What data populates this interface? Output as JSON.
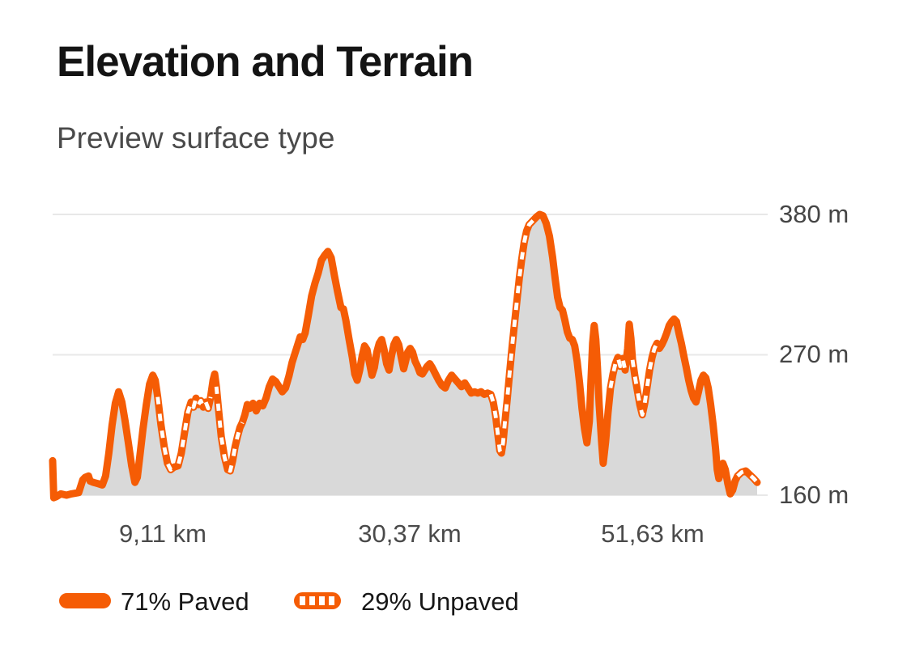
{
  "header": {
    "title": "Elevation and Terrain",
    "subtitle": "Preview surface type"
  },
  "chart_data": {
    "type": "area",
    "title": "Elevation and Terrain",
    "x_unit": "km",
    "y_unit": "m",
    "x_range": [
      0,
      60.9
    ],
    "y_axis": {
      "min": 160,
      "max": 380,
      "ticks": [
        {
          "label": "380 m",
          "value": 380
        },
        {
          "label": "270 m",
          "value": 270
        },
        {
          "label": "160 m",
          "value": 160
        }
      ]
    },
    "x_axis": {
      "ticks": [
        {
          "label": "9,11 km",
          "value": 9.11
        },
        {
          "label": "30,37 km",
          "value": 30.37
        },
        {
          "label": "51,63 km",
          "value": 51.63
        }
      ]
    },
    "legend": [
      {
        "label": "71% Paved",
        "swatch": "solid"
      },
      {
        "label": "29% Unpaved",
        "swatch": "dashed"
      }
    ],
    "colors": {
      "line": "#f55c05",
      "dash": "#ffffff",
      "fill": "#d9d9d9",
      "grid": "#e8e8e8"
    },
    "surface_key": {
      "p": "paved",
      "u": "unpaved"
    },
    "profile": [
      [
        0,
        187,
        "p"
      ],
      [
        0.1,
        158,
        "p"
      ],
      [
        0.35,
        159,
        "p"
      ],
      [
        0.7,
        161,
        "p"
      ],
      [
        1.19,
        160,
        "p"
      ],
      [
        1.61,
        161,
        "p"
      ],
      [
        2.24,
        162,
        "p"
      ],
      [
        2.59,
        172,
        "p"
      ],
      [
        2.8,
        174,
        "p"
      ],
      [
        3.08,
        175,
        "p"
      ],
      [
        3.22,
        171,
        "p"
      ],
      [
        3.5,
        170,
        "p"
      ],
      [
        3.92,
        169,
        "p"
      ],
      [
        4.27,
        168,
        "p"
      ],
      [
        4.55,
        175,
        "p"
      ],
      [
        4.83,
        193,
        "p"
      ],
      [
        5.11,
        215,
        "p"
      ],
      [
        5.39,
        232,
        "p"
      ],
      [
        5.67,
        241,
        "p"
      ],
      [
        5.95,
        233,
        "p"
      ],
      [
        6.23,
        218,
        "p"
      ],
      [
        6.51,
        201,
        "p"
      ],
      [
        6.79,
        183,
        "p"
      ],
      [
        7.07,
        170,
        "p"
      ],
      [
        7.28,
        174,
        "p"
      ],
      [
        7.49,
        190,
        "p"
      ],
      [
        7.77,
        212,
        "p"
      ],
      [
        8.05,
        231,
        "p"
      ],
      [
        8.33,
        247,
        "p"
      ],
      [
        8.61,
        254,
        "p"
      ],
      [
        8.82,
        250,
        "p"
      ],
      [
        9.03,
        237,
        "u"
      ],
      [
        9.31,
        215,
        "u"
      ],
      [
        9.59,
        198,
        "u"
      ],
      [
        9.87,
        185,
        "u"
      ],
      [
        10.15,
        180,
        "u"
      ],
      [
        10.43,
        182,
        "u"
      ],
      [
        10.78,
        183,
        "u"
      ],
      [
        11.06,
        193,
        "u"
      ],
      [
        11.34,
        209,
        "u"
      ],
      [
        11.62,
        225,
        "u"
      ],
      [
        11.9,
        233,
        "u"
      ],
      [
        12.11,
        229,
        "u"
      ],
      [
        12.32,
        236,
        "u"
      ],
      [
        12.53,
        231,
        "u"
      ],
      [
        12.74,
        234,
        "u"
      ],
      [
        12.95,
        229,
        "u"
      ],
      [
        13.16,
        233,
        "u"
      ],
      [
        13.37,
        228,
        "u"
      ],
      [
        13.58,
        237,
        "p"
      ],
      [
        13.79,
        250,
        "p"
      ],
      [
        13.93,
        255,
        "p"
      ],
      [
        14.07,
        245,
        "u"
      ],
      [
        14.28,
        225,
        "u"
      ],
      [
        14.49,
        206,
        "u"
      ],
      [
        14.77,
        190,
        "u"
      ],
      [
        15.05,
        180,
        "u"
      ],
      [
        15.26,
        179,
        "u"
      ],
      [
        15.47,
        187,
        "u"
      ],
      [
        15.68,
        198,
        "u"
      ],
      [
        15.89,
        206,
        "u"
      ],
      [
        16.1,
        213,
        "u"
      ],
      [
        16.31,
        217,
        "p"
      ],
      [
        16.52,
        223,
        "p"
      ],
      [
        16.73,
        231,
        "p"
      ],
      [
        16.94,
        228,
        "p"
      ],
      [
        17.22,
        232,
        "p"
      ],
      [
        17.5,
        226,
        "p"
      ],
      [
        17.78,
        232,
        "p"
      ],
      [
        18.06,
        230,
        "p"
      ],
      [
        18.34,
        236,
        "p"
      ],
      [
        18.62,
        245,
        "p"
      ],
      [
        18.9,
        251,
        "p"
      ],
      [
        19.18,
        249,
        "p"
      ],
      [
        19.46,
        245,
        "p"
      ],
      [
        19.74,
        241,
        "p"
      ],
      [
        20.02,
        244,
        "p"
      ],
      [
        20.3,
        253,
        "p"
      ],
      [
        20.58,
        264,
        "p"
      ],
      [
        20.86,
        272,
        "p"
      ],
      [
        21.07,
        278,
        "p"
      ],
      [
        21.28,
        284,
        "p"
      ],
      [
        21.49,
        282,
        "p"
      ],
      [
        21.7,
        287,
        "p"
      ],
      [
        21.98,
        301,
        "p"
      ],
      [
        22.26,
        316,
        "p"
      ],
      [
        22.54,
        326,
        "p"
      ],
      [
        22.82,
        334,
        "p"
      ],
      [
        23.1,
        344,
        "p"
      ],
      [
        23.38,
        348,
        "p"
      ],
      [
        23.66,
        351,
        "p"
      ],
      [
        23.94,
        346,
        "p"
      ],
      [
        24.22,
        332,
        "p"
      ],
      [
        24.5,
        319,
        "p"
      ],
      [
        24.78,
        307,
        "p"
      ],
      [
        24.99,
        306,
        "p"
      ],
      [
        25.2,
        297,
        "p"
      ],
      [
        25.48,
        282,
        "p"
      ],
      [
        25.76,
        268,
        "p"
      ],
      [
        25.97,
        255,
        "p"
      ],
      [
        26.18,
        250,
        "p"
      ],
      [
        26.39,
        258,
        "p"
      ],
      [
        26.6,
        269,
        "p"
      ],
      [
        26.81,
        277,
        "p"
      ],
      [
        27.02,
        274,
        "p"
      ],
      [
        27.23,
        264,
        "p"
      ],
      [
        27.44,
        254,
        "p"
      ],
      [
        27.65,
        260,
        "p"
      ],
      [
        27.86,
        272,
        "p"
      ],
      [
        28.07,
        279,
        "p"
      ],
      [
        28.28,
        282,
        "p"
      ],
      [
        28.49,
        274,
        "p"
      ],
      [
        28.7,
        263,
        "p"
      ],
      [
        28.91,
        258,
        "p"
      ],
      [
        29.12,
        269,
        "p"
      ],
      [
        29.33,
        278,
        "p"
      ],
      [
        29.54,
        282,
        "p"
      ],
      [
        29.75,
        278,
        "p"
      ],
      [
        29.96,
        268,
        "p"
      ],
      [
        30.17,
        259,
        "p"
      ],
      [
        30.31,
        264,
        "p"
      ],
      [
        30.52,
        272,
        "p"
      ],
      [
        30.73,
        275,
        "p"
      ],
      [
        30.94,
        272,
        "p"
      ],
      [
        31.15,
        265,
        "p"
      ],
      [
        31.36,
        261,
        "p"
      ],
      [
        31.57,
        256,
        "p"
      ],
      [
        31.78,
        255,
        "p"
      ],
      [
        31.99,
        258,
        "p"
      ],
      [
        32.2,
        261,
        "p"
      ],
      [
        32.41,
        263,
        "p"
      ],
      [
        32.62,
        260,
        "p"
      ],
      [
        32.9,
        255,
        "p"
      ],
      [
        33.18,
        250,
        "p"
      ],
      [
        33.46,
        246,
        "p"
      ],
      [
        33.74,
        244,
        "p"
      ],
      [
        34.02,
        250,
        "p"
      ],
      [
        34.3,
        254,
        "p"
      ],
      [
        34.58,
        251,
        "p"
      ],
      [
        34.86,
        248,
        "p"
      ],
      [
        35.14,
        245,
        "p"
      ],
      [
        35.42,
        248,
        "p"
      ],
      [
        35.7,
        244,
        "p"
      ],
      [
        35.98,
        240,
        "p"
      ],
      [
        36.26,
        241,
        "p"
      ],
      [
        36.54,
        240,
        "p"
      ],
      [
        36.82,
        241,
        "p"
      ],
      [
        37.1,
        239,
        "p"
      ],
      [
        37.38,
        240,
        "p"
      ],
      [
        37.66,
        239,
        "u"
      ],
      [
        37.87,
        233,
        "u"
      ],
      [
        38.08,
        222,
        "u"
      ],
      [
        38.29,
        206,
        "u"
      ],
      [
        38.43,
        195,
        "u"
      ],
      [
        38.57,
        193,
        "u"
      ],
      [
        38.71,
        201,
        "u"
      ],
      [
        38.85,
        215,
        "u"
      ],
      [
        39.06,
        234,
        "u"
      ],
      [
        39.27,
        255,
        "u"
      ],
      [
        39.48,
        275,
        "u"
      ],
      [
        39.69,
        294,
        "u"
      ],
      [
        39.9,
        312,
        "u"
      ],
      [
        40.11,
        330,
        "u"
      ],
      [
        40.32,
        345,
        "u"
      ],
      [
        40.53,
        358,
        "u"
      ],
      [
        40.74,
        367,
        "u"
      ],
      [
        40.95,
        372,
        "u"
      ],
      [
        41.16,
        374,
        "u"
      ],
      [
        41.37,
        376,
        "p"
      ],
      [
        41.58,
        378,
        "p"
      ],
      [
        41.86,
        380,
        "p"
      ],
      [
        42.14,
        379,
        "p"
      ],
      [
        42.42,
        373,
        "p"
      ],
      [
        42.7,
        363,
        "p"
      ],
      [
        42.98,
        346,
        "p"
      ],
      [
        43.19,
        330,
        "p"
      ],
      [
        43.4,
        315,
        "p"
      ],
      [
        43.61,
        307,
        "p"
      ],
      [
        43.82,
        305,
        "p"
      ],
      [
        44.03,
        297,
        "p"
      ],
      [
        44.24,
        288,
        "p"
      ],
      [
        44.45,
        283,
        "p"
      ],
      [
        44.66,
        282,
        "p"
      ],
      [
        44.87,
        277,
        "p"
      ],
      [
        45.08,
        265,
        "p"
      ],
      [
        45.29,
        248,
        "p"
      ],
      [
        45.5,
        228,
        "p"
      ],
      [
        45.71,
        212,
        "p"
      ],
      [
        45.92,
        201,
        "p"
      ],
      [
        46.13,
        218,
        "p"
      ],
      [
        46.27,
        250,
        "p"
      ],
      [
        46.41,
        279,
        "p"
      ],
      [
        46.55,
        293,
        "p"
      ],
      [
        46.69,
        282,
        "p"
      ],
      [
        46.83,
        260,
        "p"
      ],
      [
        46.97,
        231,
        "p"
      ],
      [
        47.18,
        202,
        "p"
      ],
      [
        47.32,
        185,
        "p"
      ],
      [
        47.53,
        202,
        "p"
      ],
      [
        47.74,
        225,
        "p"
      ],
      [
        47.95,
        244,
        "u"
      ],
      [
        48.16,
        255,
        "u"
      ],
      [
        48.37,
        263,
        "u"
      ],
      [
        48.58,
        268,
        "u"
      ],
      [
        48.79,
        261,
        "u"
      ],
      [
        49,
        267,
        "u"
      ],
      [
        49.21,
        258,
        "p"
      ],
      [
        49.42,
        275,
        "p"
      ],
      [
        49.56,
        294,
        "p"
      ],
      [
        49.7,
        283,
        "p"
      ],
      [
        49.84,
        266,
        "u"
      ],
      [
        50.05,
        253,
        "u"
      ],
      [
        50.26,
        242,
        "u"
      ],
      [
        50.47,
        231,
        "u"
      ],
      [
        50.68,
        223,
        "u"
      ],
      [
        50.89,
        232,
        "u"
      ],
      [
        51.1,
        245,
        "u"
      ],
      [
        51.31,
        258,
        "u"
      ],
      [
        51.52,
        268,
        "u"
      ],
      [
        51.73,
        275,
        "u"
      ],
      [
        51.94,
        279,
        "u"
      ],
      [
        52.15,
        275,
        "p"
      ],
      [
        52.36,
        278,
        "p"
      ],
      [
        52.57,
        282,
        "p"
      ],
      [
        52.78,
        287,
        "p"
      ],
      [
        52.99,
        293,
        "p"
      ],
      [
        53.2,
        296,
        "p"
      ],
      [
        53.41,
        298,
        "p"
      ],
      [
        53.62,
        296,
        "p"
      ],
      [
        53.83,
        287,
        "p"
      ],
      [
        54.04,
        279,
        "p"
      ],
      [
        54.25,
        269,
        "p"
      ],
      [
        54.46,
        260,
        "p"
      ],
      [
        54.67,
        250,
        "p"
      ],
      [
        54.88,
        242,
        "p"
      ],
      [
        55.09,
        236,
        "p"
      ],
      [
        55.3,
        233,
        "p"
      ],
      [
        55.51,
        241,
        "p"
      ],
      [
        55.72,
        250,
        "p"
      ],
      [
        55.93,
        254,
        "p"
      ],
      [
        56.14,
        252,
        "p"
      ],
      [
        56.35,
        244,
        "p"
      ],
      [
        56.56,
        231,
        "p"
      ],
      [
        56.77,
        215,
        "p"
      ],
      [
        56.98,
        196,
        "p"
      ],
      [
        57.12,
        180,
        "p"
      ],
      [
        57.26,
        173,
        "p"
      ],
      [
        57.4,
        177,
        "p"
      ],
      [
        57.61,
        185,
        "p"
      ],
      [
        57.82,
        180,
        "p"
      ],
      [
        58.03,
        169,
        "p"
      ],
      [
        58.24,
        161,
        "p"
      ],
      [
        58.45,
        164,
        "p"
      ],
      [
        58.66,
        171,
        "p"
      ],
      [
        58.87,
        175,
        "u"
      ],
      [
        59.22,
        178,
        "u"
      ],
      [
        59.57,
        179,
        "u"
      ],
      [
        59.92,
        176,
        "u"
      ],
      [
        60.27,
        173,
        "u"
      ],
      [
        60.55,
        170,
        "u"
      ]
    ]
  }
}
